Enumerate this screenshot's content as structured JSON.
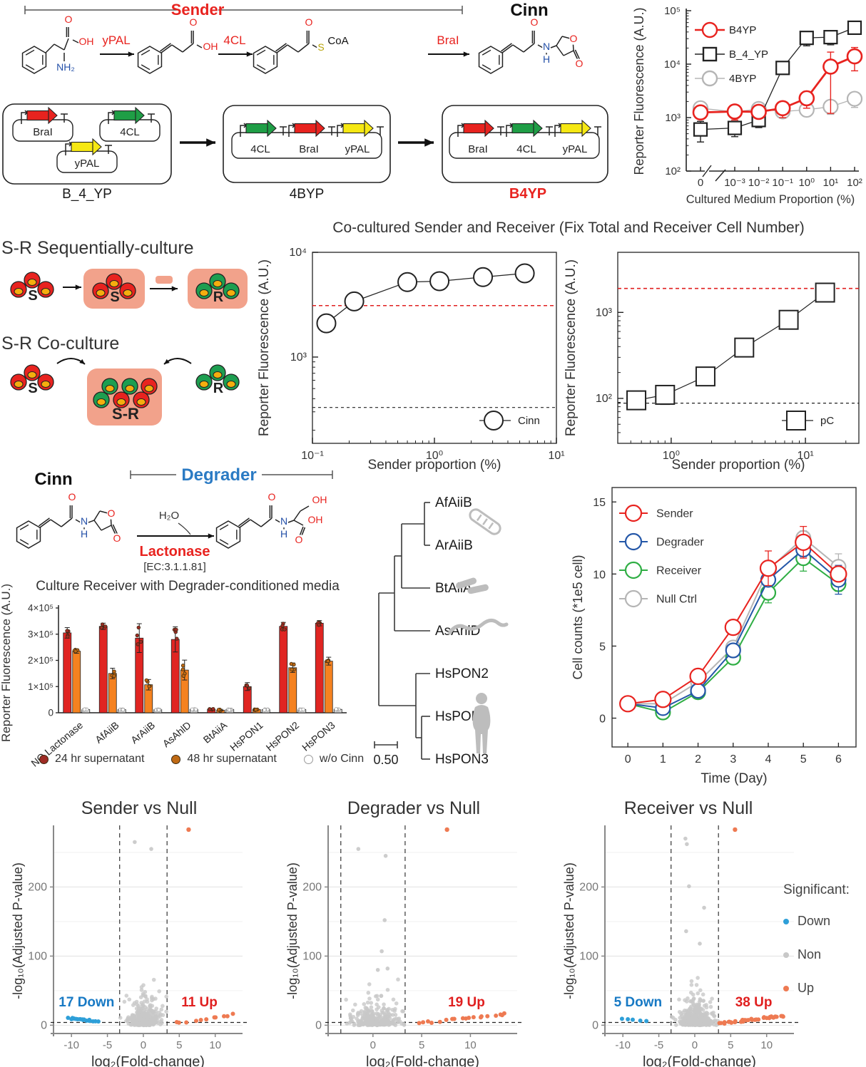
{
  "colors": {
    "red": "#e8231f",
    "dark": "#222222",
    "gray_series": "#b5b5b5",
    "green_gene": "#1f9e46",
    "yellow_gene": "#f6e813",
    "salmon": "#f2a28b",
    "nucleus": "#f5ae0e",
    "cell_green": "#1d9e50",
    "blue_text": "#2b7bc4",
    "atom_red": "#e8231f",
    "atom_blue": "#2450a8",
    "atom_s": "#b8a40a",
    "bar_red": "#e02522",
    "bar_orange": "#f58220",
    "bar_gray": "#dcdcdc",
    "dot_darkred": "#9e2b25",
    "dot_darkorange": "#c06a14",
    "growth_blue": "#2457a8",
    "growth_green": "#2fae44",
    "volcano_blue": "#2e9fd8",
    "volcano_gray": "#c8c8c8",
    "volcano_orange": "#ee7a52",
    "down_label": "#1779c4",
    "up_label": "#e01f1f"
  },
  "pathway": {
    "sender_bracket": "Sender",
    "cinn_title": "Cinn",
    "enzyme1": "yPAL",
    "enzyme2": "4CL",
    "enzyme3": "BraI",
    "atoms": {
      "o": "O",
      "oh": "OH",
      "nh2": "NH₂",
      "s": "S",
      "coa": "CoA",
      "n": "N",
      "h": "H"
    }
  },
  "constructs": {
    "plasmids": [
      {
        "name": "B_4_YP",
        "name_color": "#1a1a1a",
        "style": "separate",
        "genes": [
          {
            "label": "BraI",
            "color": "#e8231f"
          },
          {
            "label": "4CL",
            "color": "#1f9e46"
          },
          {
            "label": "yPAL",
            "color": "#f6e813"
          }
        ]
      },
      {
        "name": "4BYP",
        "name_color": "#1a1a1a",
        "style": "operon",
        "genes": [
          {
            "label": "4CL",
            "color": "#1f9e46"
          },
          {
            "label": "BraI",
            "color": "#e8231f"
          },
          {
            "label": "yPAL",
            "color": "#f6e813"
          }
        ]
      },
      {
        "name": "B4YP",
        "name_color": "#e8231f",
        "style": "operon",
        "genes": [
          {
            "label": "BraI",
            "color": "#e8231f"
          },
          {
            "label": "4CL",
            "color": "#1f9e46"
          },
          {
            "label": "yPAL",
            "color": "#f6e813"
          }
        ]
      }
    ]
  },
  "sr_diagram": {
    "title_sequential": "S-R Sequentially-culture",
    "title_coculture": "S-R Co-culture",
    "labels": {
      "s": "S",
      "r": "R",
      "sr": "S-R"
    }
  },
  "cocultured_title": "Co-cultured Sender and Receiver (Fix Total and Receiver Cell Number)",
  "degrader_scheme": {
    "cinn_title": "Cinn",
    "degrader_bracket": "Degrader",
    "h2o": "H₂O",
    "enzyme": "Lactonase",
    "ec": "[EC:3.1.1.81]"
  },
  "volcano_legend": {
    "title": "Significant:",
    "items": [
      {
        "label": "Down",
        "color": "#2e9fd8"
      },
      {
        "label": "Non",
        "color": "#c8c8c8"
      },
      {
        "label": "Up",
        "color": "#ee7a52"
      }
    ]
  },
  "chart_data": [
    {
      "id": "medium_response",
      "type": "line",
      "xlabel": "Cultured Medium Proportion (%)",
      "ylabel": "Reporter Fluorescence (A.U.)",
      "x_tick_labels": [
        "0",
        "10⁻³",
        "10⁻²",
        "10⁻¹",
        "10⁰",
        "10¹",
        "10²"
      ],
      "y_tick_labels": [
        "10²",
        "10³",
        "10⁴",
        "10⁵"
      ],
      "x_axis_break": true,
      "y_log_range": [
        100,
        100000
      ],
      "series": [
        {
          "name": "B4YP",
          "color": "#e8231f",
          "marker": "circle",
          "values": [
            1250,
            1300,
            1280,
            1500,
            2300,
            9000,
            14000
          ],
          "err": [
            250,
            400,
            250,
            500,
            800,
            7800,
            6500
          ]
        },
        {
          "name": "B_4_YP",
          "color": "#222222",
          "marker": "square",
          "values": [
            600,
            640,
            900,
            8500,
            31000,
            32000,
            48000
          ],
          "err": [
            250,
            200,
            250,
            1500,
            9000,
            9000,
            4000
          ]
        },
        {
          "name": "4BYP",
          "color": "#b5b5b5",
          "marker": "circle",
          "values": [
            1500,
            1280,
            1450,
            1300,
            1400,
            1600,
            2250
          ],
          "err": [
            250,
            200,
            250,
            300,
            350,
            450,
            700
          ]
        }
      ]
    },
    {
      "id": "cocult_cinn",
      "type": "scatter",
      "xlabel": "Sender proportion (%)",
      "ylabel": "Reporter Fluorescence (A.U.)",
      "legend": "Cinn",
      "marker": "circle",
      "x": [
        0.13,
        0.22,
        0.6,
        1.1,
        2.5,
        5.5
      ],
      "y": [
        2100,
        3400,
        5200,
        5300,
        5800,
        6300
      ],
      "err": [
        350,
        300,
        500,
        900,
        500,
        400
      ],
      "xlim": [
        0.1,
        10
      ],
      "ylim": [
        150,
        10000
      ],
      "x_tick_labels": [
        "10⁻¹",
        "10⁰",
        "10¹"
      ],
      "x_tick_values": [
        0.1,
        1,
        10
      ],
      "y_tick_labels": [
        "10³",
        "10⁴"
      ],
      "y_tick_values": [
        1000,
        10000
      ],
      "ref_line_red": 3100,
      "ref_line_black": 330
    },
    {
      "id": "cocult_pc",
      "type": "scatter",
      "xlabel": "Sender proportion (%)",
      "ylabel": "Reporter Fluorescence (A.U.)",
      "legend": "pC",
      "marker": "square",
      "x": [
        0.55,
        0.9,
        1.8,
        3.5,
        7.5,
        14
      ],
      "y": [
        95,
        110,
        180,
        390,
        820,
        1700
      ],
      "err": [
        18,
        25,
        25,
        70,
        120,
        300
      ],
      "xlim": [
        0.4,
        25
      ],
      "ylim": [
        30,
        5000
      ],
      "x_tick_labels": [
        "10⁰",
        "10¹"
      ],
      "x_tick_values": [
        1,
        10
      ],
      "y_tick_labels": [
        "10²",
        "10³"
      ],
      "y_tick_values": [
        100,
        1000
      ],
      "ref_line_red": 1900,
      "ref_line_black": 88
    },
    {
      "id": "degrader_bars",
      "type": "bar",
      "title": "Culture Receiver with Degrader-conditioned media",
      "ylabel": "Reporter Fluorescence (A.U.)",
      "categories": [
        "NO Lactonase",
        "AfAiiB",
        "ArAiiB",
        "AsAhlD",
        "BtAiiA",
        "HsPON1",
        "HsPON2",
        "HsPON3"
      ],
      "y_tick_labels": [
        "0",
        "1×10⁵",
        "2×10⁵",
        "3×10⁵",
        "4×10⁵"
      ],
      "ylim": [
        0,
        400000
      ],
      "series": [
        {
          "name": "24 hr supernatant",
          "bar_color": "#e02522",
          "dot_color": "#9e2b25",
          "values": [
            305000,
            330000,
            285000,
            280000,
            13000,
            100000,
            330000,
            342000
          ],
          "err": [
            20000,
            12000,
            55000,
            48000,
            3000,
            15000,
            15000,
            10000
          ]
        },
        {
          "name": "48 hr supernatant",
          "bar_color": "#f58220",
          "dot_color": "#c06a14",
          "values": [
            235000,
            150000,
            107000,
            163000,
            10000,
            12000,
            172000,
            197000
          ],
          "err": [
            8000,
            20000,
            20000,
            38000,
            3000,
            2000,
            18000,
            15000
          ]
        },
        {
          "name": "w/o Cinn",
          "bar_color": "#dcdcdc",
          "dot_color": "#bbbbbb",
          "values": [
            12000,
            12000,
            12000,
            13000,
            12000,
            12000,
            12000,
            13000
          ],
          "err": [
            1500,
            1500,
            1500,
            1500,
            1500,
            1500,
            1500,
            1500
          ]
        }
      ]
    },
    {
      "id": "lactonase_tree",
      "type": "tree",
      "leaves": [
        "AfAiiB",
        "ArAiiB",
        "BtAiiA",
        "AsAhlD",
        "HsPON2",
        "HsPON1",
        "HsPON3"
      ],
      "scale_bar": "0.50"
    },
    {
      "id": "growth",
      "type": "line",
      "xlabel": "Time (Day)",
      "ylabel": "Cell counts (*1e5 cell)",
      "x": [
        0,
        1,
        2,
        3,
        4,
        5,
        6
      ],
      "x_tick_labels": [
        "0",
        "1",
        "2",
        "3",
        "4",
        "5",
        "6"
      ],
      "y_ticks": [
        0,
        5,
        10,
        15
      ],
      "ylim": [
        -2,
        16
      ],
      "series": [
        {
          "name": "Sender",
          "color": "#e8231f",
          "values": [
            1.0,
            1.3,
            2.9,
            6.3,
            10.4,
            12.2,
            10.0
          ],
          "err": [
            0.15,
            0.25,
            0.3,
            0.5,
            1.2,
            1.1,
            0.5
          ]
        },
        {
          "name": "Degrader",
          "color": "#2457a8",
          "values": [
            1.0,
            0.7,
            1.9,
            4.7,
            9.6,
            11.7,
            9.6
          ],
          "err": [
            0.15,
            0.3,
            0.4,
            0.25,
            0.4,
            0.5,
            1.0
          ]
        },
        {
          "name": "Receiver",
          "color": "#2fae44",
          "values": [
            1.0,
            0.4,
            1.8,
            4.2,
            8.7,
            11.1,
            9.3
          ],
          "err": [
            0.15,
            0.2,
            0.3,
            0.3,
            0.7,
            0.9,
            0.5
          ]
        },
        {
          "name": "Null Ctrl",
          "color": "#b5b5b5",
          "values": [
            1.0,
            1.0,
            2.5,
            4.9,
            10.3,
            12.5,
            10.5
          ],
          "err": [
            0.15,
            0.2,
            0.3,
            0.4,
            0.6,
            0.5,
            0.9
          ]
        }
      ]
    },
    {
      "id": "volcano_sender",
      "type": "scatter",
      "title": "Sender vs Null",
      "xlabel": "log₂(Fold-change)",
      "ylabel": "-log₁₀(Adjusted P-value)",
      "x_ticks": [
        -10,
        -5,
        0,
        5,
        10
      ],
      "y_ticks": [
        0,
        100,
        200
      ],
      "xlim": [
        -12.5,
        13.8
      ],
      "ylim": [
        -12,
        285
      ],
      "thresholds": {
        "x": [
          -3.3,
          3.3
        ],
        "y": 4
      },
      "down_label": "17 Down",
      "up_label": "11 Up",
      "n_down": 17,
      "n_up": 11,
      "n_non": 330,
      "non_outliers": [
        [
          -1.2,
          265
        ],
        [
          1.1,
          255
        ]
      ],
      "up_outlier": [
        6.3,
        283
      ],
      "up_x0": 4.5,
      "up_x1": 12.8,
      "up_slope": 1.6,
      "up_label_x": 7.8,
      "down_label_x": -7.9,
      "label_y": 27,
      "seed": 7
    },
    {
      "id": "volcano_degrader",
      "type": "scatter",
      "title": "Degrader vs Null",
      "xlabel": "log₂(Fold-change)",
      "ylabel": "-log₁₀(Adjusted P-value)",
      "x_ticks": [
        0,
        5,
        10
      ],
      "y_ticks": [
        0,
        100,
        200
      ],
      "xlim": [
        -4.6,
        14.8
      ],
      "ylim": [
        -12,
        285
      ],
      "thresholds": {
        "x": [
          -3.3,
          3.3
        ],
        "y": 4
      },
      "down_label": "",
      "up_label": "19 Up",
      "n_down": 0,
      "n_up": 19,
      "n_non": 300,
      "non_outliers": [
        [
          -1.5,
          255
        ],
        [
          1.3,
          245
        ],
        [
          1.2,
          152
        ],
        [
          0.9,
          107
        ],
        [
          1.5,
          82
        ],
        [
          0.5,
          80
        ]
      ],
      "up_outlier": [
        7.6,
        283
      ],
      "up_x0": 4.9,
      "up_x1": 13.8,
      "up_slope": 1.5,
      "up_label_x": 9.6,
      "down_label_x": null,
      "label_y": 27,
      "seed": 11
    },
    {
      "id": "volcano_receiver",
      "type": "scatter",
      "title": "Receiver vs Null",
      "xlabel": "log₂(Fold-change)",
      "ylabel": "-log₁₀(Adjusted P-value)",
      "x_ticks": [
        -10,
        -5,
        0,
        5,
        10
      ],
      "y_ticks": [
        0,
        100,
        200
      ],
      "xlim": [
        -12.5,
        13.8
      ],
      "ylim": [
        -12,
        285
      ],
      "thresholds": {
        "x": [
          -3.3,
          3.3
        ],
        "y": 4
      },
      "down_label": "5 Down",
      "up_label": "38 Up",
      "n_down": 5,
      "n_up": 38,
      "n_non": 380,
      "non_outliers": [
        [
          -1.3,
          270
        ],
        [
          -1.1,
          262
        ],
        [
          -0.8,
          201
        ],
        [
          1.3,
          170
        ],
        [
          -1.2,
          136
        ],
        [
          0.7,
          118
        ]
      ],
      "up_outlier": [
        5.6,
        283
      ],
      "up_x0": 3.6,
      "up_x1": 12.4,
      "up_slope": 1.2,
      "up_label_x": 8.2,
      "down_label_x": -7.9,
      "label_y": 27,
      "seed": 13
    }
  ]
}
